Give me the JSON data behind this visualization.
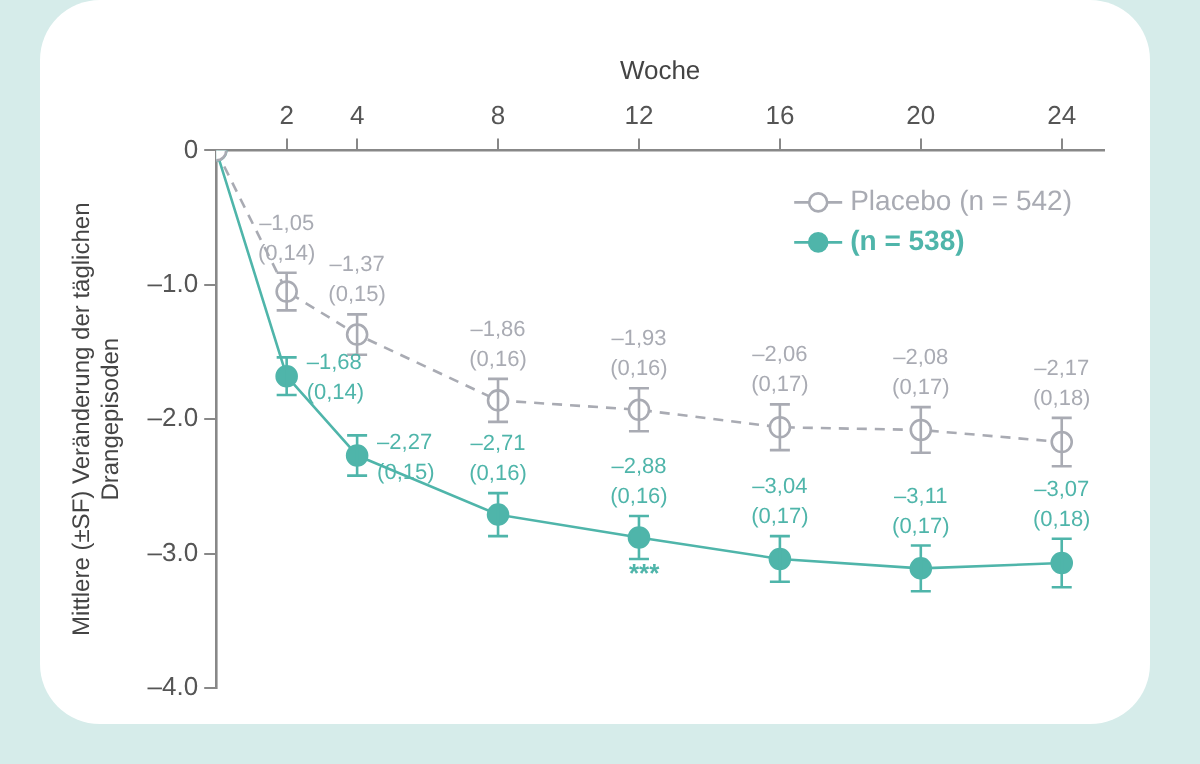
{
  "chart_data": {
    "type": "line",
    "xlabel": "Woche",
    "ylabel": "Mittlere (±SF) Veränderung der täglichen\nDrangepisoden",
    "x": [
      0,
      2,
      4,
      8,
      12,
      16,
      20,
      24
    ],
    "series": [
      {
        "name": "Placebo (n = 542)",
        "color": "#a9abb3",
        "line_style": "dashed",
        "marker": "circle",
        "values": [
          0,
          -1.05,
          -1.37,
          -1.86,
          -1.93,
          -2.06,
          -2.08,
          -2.17
        ],
        "errors": [
          null,
          0.14,
          0.15,
          0.16,
          0.16,
          0.17,
          0.17,
          0.18
        ],
        "value_labels": [
          null,
          "–1,05\n(0,14)",
          "–1,37\n(0,15)",
          "–1,86\n(0,16)",
          "–1,93\n(0,16)",
          "–2,06\n(0,17)",
          "–2,08\n(0,17)",
          "–2,17\n(0,18)"
        ]
      },
      {
        "name": "(n = 538)",
        "color": "#4fb5aa",
        "line_style": "solid",
        "marker": "circle",
        "values": [
          0,
          -1.68,
          -2.27,
          -2.71,
          -2.88,
          -3.04,
          -3.11,
          -3.07
        ],
        "errors": [
          null,
          0.14,
          0.15,
          0.16,
          0.16,
          0.17,
          0.17,
          0.18
        ],
        "value_labels": [
          null,
          "–1,68\n(0,14)",
          "–2,27\n(0,15)",
          "–2,71\n(0,16)",
          "–2,88\n(0,16)",
          "–3,04\n(0,17)",
          "–3,11\n(0,17)",
          "–3,07\n(0,18)"
        ]
      }
    ],
    "xlim": [
      0,
      25.2
    ],
    "xticks": [
      2,
      4,
      8,
      12,
      16,
      20,
      24
    ],
    "ylim": [
      -4,
      0
    ],
    "yticks": [
      {
        "value": 0,
        "label": "0"
      },
      {
        "value": -1,
        "label": "–1.0"
      },
      {
        "value": -2,
        "label": "–2.0"
      },
      {
        "value": -3,
        "label": "–3.0"
      },
      {
        "value": -4,
        "label": "–4.0"
      }
    ],
    "annotations": [
      "***"
    ],
    "legend": "top right",
    "grid": false
  }
}
